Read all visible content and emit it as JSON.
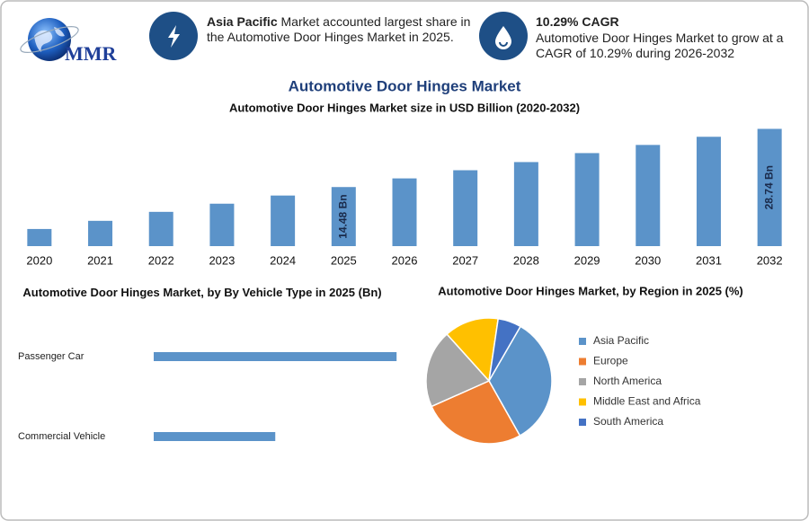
{
  "logo": "MMR",
  "header": {
    "highlight_bold": "Asia Pacific",
    "highlight_text": " Market accounted largest share in the Automotive Door Hinges Market in 2025.",
    "cagr_title": "10.29% CAGR",
    "cagr_text": "Automotive Door Hinges Market to grow at a CAGR of 10.29% during 2026-2032"
  },
  "chart_data": [
    {
      "type": "bar",
      "title": "Automotive Door Hinges Market",
      "subtitle": "Automotive Door Hinges Market size in USD Billion (2020-2032)",
      "categories": [
        "2020",
        "2021",
        "2022",
        "2023",
        "2024",
        "2025",
        "2026",
        "2027",
        "2028",
        "2029",
        "2030",
        "2031",
        "2032"
      ],
      "values": [
        4.2,
        6.2,
        8.4,
        10.4,
        12.4,
        14.48,
        16.6,
        18.6,
        20.6,
        22.8,
        24.8,
        26.8,
        28.74
      ],
      "value_labels": [
        null,
        null,
        null,
        null,
        null,
        "14.48 Bn",
        null,
        null,
        null,
        null,
        null,
        null,
        "28.74 Bn"
      ],
      "color": "#5b93c9",
      "ylim": [
        0,
        29.5
      ]
    },
    {
      "type": "bar",
      "horizontal": true,
      "title": "Automotive Door Hinges Market, by By Vehicle Type in 2025 (Bn)",
      "categories": [
        "Passenger Car",
        "Commercial Vehicle"
      ],
      "values": [
        9.65,
        4.83
      ],
      "color": "#5b93c9",
      "xlim": [
        0,
        10
      ]
    },
    {
      "type": "pie",
      "title": "Automotive Door Hinges Market, by Region in 2025 (%)",
      "categories": [
        "Asia Pacific",
        "Europe",
        "North America",
        "Middle East and Africa",
        "South America"
      ],
      "values": [
        33.5,
        26.5,
        20,
        14,
        6
      ],
      "colors": [
        "#5b93c9",
        "#ed7d31",
        "#a5a5a5",
        "#ffc000",
        "#4472c4"
      ]
    }
  ]
}
